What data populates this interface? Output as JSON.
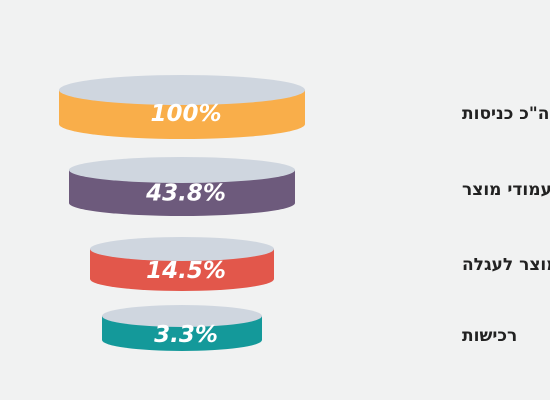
{
  "chart_data": {
    "type": "funnel",
    "stages": [
      {
        "label": "סה\"כ כניסות",
        "value": 100,
        "display": "100%",
        "color": "#f9ae4a"
      },
      {
        "label": "צפייה בעמודי מוצר",
        "value": 43.8,
        "display": "43.8%",
        "color": "#6d5a7c"
      },
      {
        "label": "הוספת מוצר לעגלה",
        "value": 14.5,
        "display": "14.5%",
        "color": "#e2574b"
      },
      {
        "label": "רכישות",
        "value": 3.3,
        "display": "3.3%",
        "color": "#14999a"
      }
    ],
    "top_color": "#cfd6df",
    "background": "#f1f2f2"
  }
}
